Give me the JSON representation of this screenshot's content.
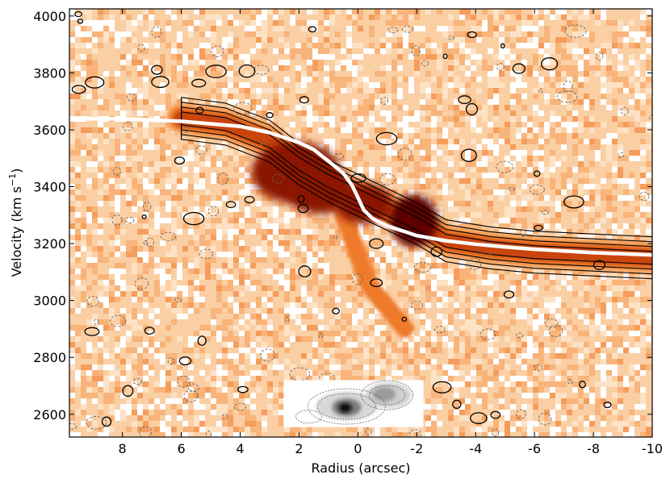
{
  "chart_data": {
    "type": "heatmap",
    "subtype": "position-velocity diagram with contours and rotation-curve overlay",
    "title": "",
    "xlabel": "Radius (arcsec)",
    "ylabel_main": "Velocity (km s",
    "ylabel_sup": "−1",
    "ylabel_tail": ")",
    "x_direction": "reversed",
    "xlim": [
      9.8,
      -10.0
    ],
    "ylim": [
      2520,
      4025
    ],
    "x_ticks": [
      8,
      6,
      4,
      2,
      0,
      -2,
      -4,
      -6,
      -8,
      -10
    ],
    "x_tick_labels": [
      "8",
      "6",
      "4",
      "2",
      "0",
      "-2",
      "-4",
      "-6",
      "-8",
      "-10"
    ],
    "y_ticks": [
      2600,
      2800,
      3000,
      3200,
      3400,
      3600,
      3800,
      4000
    ],
    "y_tick_labels": [
      "2600",
      "2800",
      "3000",
      "3200",
      "3400",
      "3600",
      "3800",
      "4000"
    ],
    "colormap": [
      "#ffffff",
      "#fbcfa4",
      "#f7a866",
      "#ee7a2c",
      "#c9440c",
      "#8a1204",
      "#5c0000"
    ],
    "contour_color": "#000000",
    "noise_contour_style": "dashed grey",
    "emission_ridge": {
      "x": [
        6.0,
        4.5,
        3.0,
        2.0,
        1.0,
        0.0,
        -1.0,
        -2.0,
        -3.0,
        -4.5,
        -6.0,
        -8.0,
        -10.0
      ],
      "y": [
        3640,
        3620,
        3560,
        3480,
        3420,
        3370,
        3320,
        3270,
        3210,
        3185,
        3170,
        3160,
        3150
      ]
    },
    "rotation_curve": {
      "name": "",
      "color": "#ffffff",
      "x": [
        9.8,
        8,
        6,
        4,
        3,
        2,
        1.5,
        1,
        0.5,
        0.2,
        0,
        -0.2,
        -0.5,
        -1,
        -1.5,
        -2,
        -3,
        -4,
        -5,
        -6,
        -7,
        -8,
        -9,
        -10
      ],
      "y": [
        3640,
        3638,
        3630,
        3612,
        3590,
        3555,
        3530,
        3490,
        3448,
        3405,
        3362,
        3318,
        3288,
        3262,
        3245,
        3228,
        3210,
        3198,
        3188,
        3180,
        3174,
        3168,
        3164,
        3160
      ]
    },
    "inset": {
      "description_shown": "greyscale continuum map with contours",
      "x_range_fraction": [
        0.3675,
        0.6075
      ],
      "y_range_data": [
        2555,
        2720
      ]
    },
    "grid": false,
    "legend": "none"
  }
}
